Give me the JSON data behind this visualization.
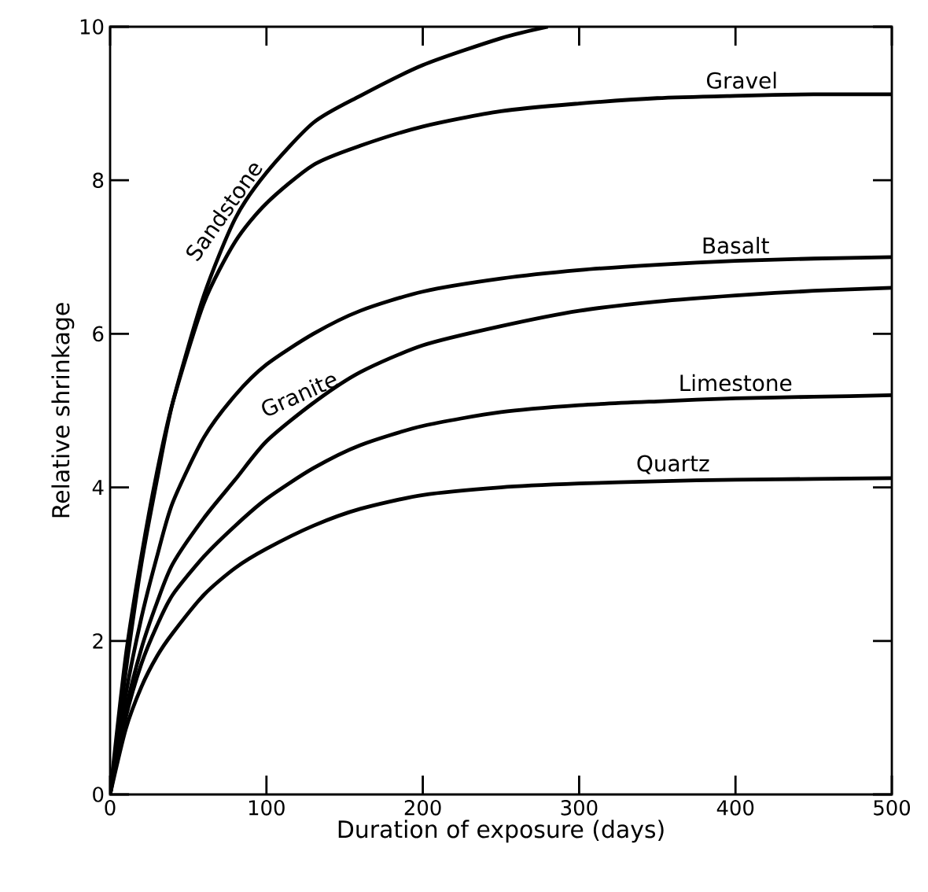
{
  "chart_data": {
    "type": "line",
    "xlabel": "Duration of exposure (days)",
    "ylabel": "Relative shrinkage",
    "x": [
      0,
      10,
      20,
      30,
      40,
      60,
      80,
      100,
      130,
      160,
      200,
      250,
      300,
      350,
      400,
      450,
      500
    ],
    "xlim": [
      0,
      500
    ],
    "ylim": [
      0,
      10
    ],
    "xticks": [
      0,
      100,
      200,
      300,
      400,
      500
    ],
    "yticks": [
      0,
      2,
      4,
      6,
      8,
      10
    ],
    "grid": false,
    "marker": "none",
    "line_style": "solid",
    "series": [
      {
        "name": "Sandstone",
        "color": "#000000",
        "x": [
          0,
          10,
          20,
          30,
          40,
          60,
          80,
          100,
          130,
          160,
          200,
          250,
          280
        ],
        "values": [
          0,
          1.6,
          3.0,
          4.1,
          5.1,
          6.5,
          7.5,
          8.1,
          8.75,
          9.1,
          9.5,
          9.85,
          10.0
        ]
      },
      {
        "name": "Gravel",
        "color": "#000000",
        "values": [
          0,
          1.8,
          3.1,
          4.2,
          5.1,
          6.4,
          7.2,
          7.7,
          8.2,
          8.45,
          8.7,
          8.9,
          9.0,
          9.07,
          9.1,
          9.12,
          9.12
        ]
      },
      {
        "name": "Basalt",
        "color": "#000000",
        "values": [
          0,
          1.3,
          2.3,
          3.1,
          3.8,
          4.65,
          5.2,
          5.6,
          6.0,
          6.3,
          6.55,
          6.72,
          6.83,
          6.9,
          6.95,
          6.98,
          7.0
        ]
      },
      {
        "name": "Granite",
        "color": "#000000",
        "values": [
          0,
          1.1,
          1.9,
          2.5,
          3.0,
          3.6,
          4.1,
          4.6,
          5.1,
          5.5,
          5.85,
          6.1,
          6.3,
          6.42,
          6.5,
          6.56,
          6.6
        ]
      },
      {
        "name": "Limestone",
        "color": "#000000",
        "values": [
          0,
          1.0,
          1.7,
          2.2,
          2.6,
          3.1,
          3.5,
          3.85,
          4.25,
          4.55,
          4.8,
          4.98,
          5.07,
          5.12,
          5.16,
          5.18,
          5.2
        ]
      },
      {
        "name": "Quartz",
        "color": "#000000",
        "values": [
          0,
          0.85,
          1.4,
          1.8,
          2.1,
          2.6,
          2.95,
          3.2,
          3.5,
          3.72,
          3.9,
          4.0,
          4.05,
          4.08,
          4.1,
          4.11,
          4.12
        ]
      }
    ]
  }
}
